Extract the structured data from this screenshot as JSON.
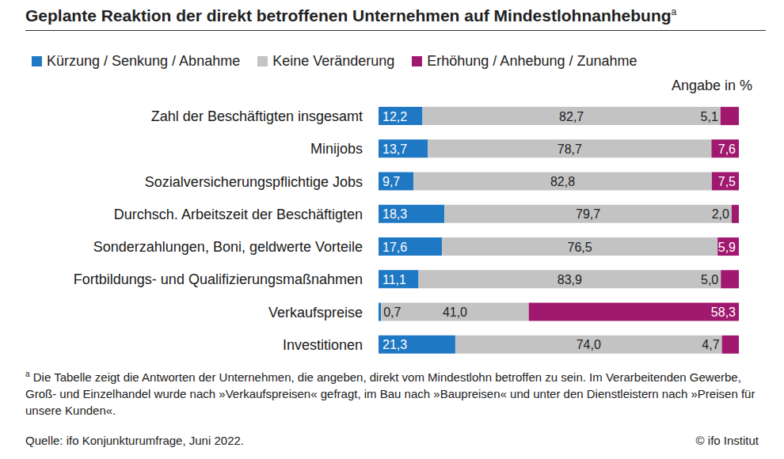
{
  "chart_data": {
    "type": "bar",
    "orientation": "horizontal",
    "stacked": true,
    "data_labels": true,
    "grid": false,
    "legend": "top",
    "tick_labels": "y",
    "title": "Geplante Reaktion der direkt betroffenen Unternehmen auf Mindestlohnanhebung",
    "title_marker": "a",
    "unit_note": "Angabe in %",
    "categories": [
      "Zahl der Beschäftigten insgesamt",
      "Minijobs",
      "Sozialversicherungspflichtige Jobs",
      "Durchsch. Arbeitszeit der Beschäftigten",
      "Sonderzahlungen, Boni, geldwerte Vorteile",
      "Fortbildungs- und Qualifizierungsmaßnahmen",
      "Verkaufspreise",
      "Investitionen"
    ],
    "xlim": [
      0,
      100
    ],
    "series": [
      {
        "name": "Kürzung / Senkung / Abnahme",
        "color": "#1f78c4",
        "values": [
          12.2,
          13.7,
          9.7,
          18.3,
          17.6,
          11.1,
          0.7,
          21.3
        ],
        "value_labels": [
          "12,2",
          "13,7",
          "9,7",
          "18,3",
          "17,6",
          "11,1",
          "0,7",
          "21,3"
        ]
      },
      {
        "name": "Keine Veränderung",
        "color": "#c3c3c3",
        "values": [
          82.7,
          78.7,
          82.8,
          79.7,
          76.5,
          83.9,
          41.0,
          74.0
        ],
        "value_labels": [
          "82,7",
          "78,7",
          "82,8",
          "79,7",
          "76,5",
          "83,9",
          "41,0",
          "74,0"
        ]
      },
      {
        "name": "Erhöhung / Anhebung / Zunahme",
        "color": "#a1196f",
        "values": [
          5.1,
          7.6,
          7.5,
          2.0,
          5.9,
          5.0,
          58.3,
          4.7
        ],
        "value_labels": [
          "5,1",
          "7,6",
          "7,5",
          "2,0",
          "5,9",
          "5,0",
          "58,3",
          "4,7"
        ]
      }
    ],
    "footnote_marker": "a",
    "footnote": "Die Tabelle zeigt die Antworten der Unternehmen, die angeben, direkt vom Mindestlohn betroffen zu sein. Im Verarbeitenden Gewerbe, Groß- und Einzelhandel wurde nach »Verkaufspreisen« gefragt, im Bau nach »Baupreisen« und unter den Dienstleistern nach »Preisen für unsere Kunden«.",
    "source": "Quelle: ifo Konjunkturumfrage, Juni 2022.",
    "copyright": "© ifo Institut"
  }
}
